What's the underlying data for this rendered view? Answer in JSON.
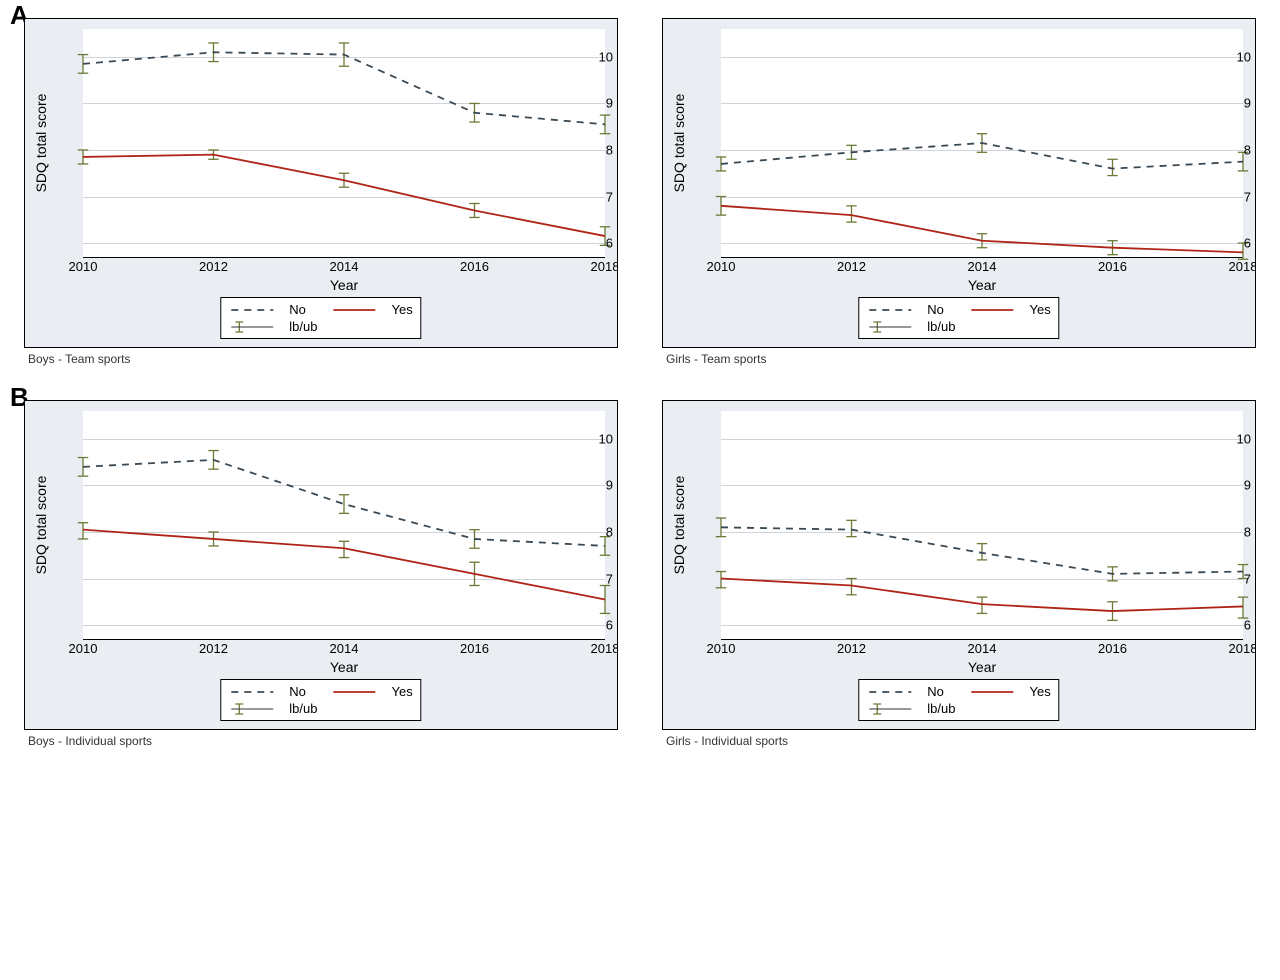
{
  "figure": {
    "background_color": "#ffffff",
    "panel_background": "#eaedf2",
    "plot_background": "#ffffff",
    "grid_color": "#cfd4db",
    "axis_color": "#000000",
    "ylabel": "SDQ total score",
    "xlabel": "Year",
    "x_ticks": [
      2010,
      2012,
      2014,
      2016,
      2018
    ],
    "y_ticks": [
      6,
      7,
      8,
      9,
      10
    ],
    "ylim": [
      5.7,
      10.6
    ],
    "xlim": [
      2010,
      2018
    ],
    "error_cap_halfwidth_years": 0.08,
    "error_line_width": 1.3,
    "label_fontsize": 14,
    "tick_fontsize": 13,
    "subtitle_fontsize": 12,
    "panel_letter_fontsize": 26,
    "series_style": {
      "no": {
        "color": "#3a4a55",
        "dash": "7,6",
        "width": 1.8
      },
      "yes": {
        "color": "#b02418",
        "dash": "",
        "width": 1.8
      },
      "err": {
        "color": "#6b7a36"
      }
    },
    "legend": {
      "no_label": "No",
      "yes_label": "Yes",
      "lbub_label": "lb/ub",
      "font_size": 13,
      "bg": "#ffffff",
      "border": "#000000"
    },
    "panels": [
      {
        "id": "boys-team",
        "letter": "A",
        "subtitle": "Boys - Team sports",
        "no": {
          "x": [
            2010,
            2012,
            2014,
            2016,
            2018
          ],
          "y": [
            9.85,
            10.1,
            10.05,
            8.8,
            8.55
          ],
          "lb": [
            9.65,
            9.9,
            9.8,
            8.6,
            8.35
          ],
          "ub": [
            10.05,
            10.3,
            10.3,
            9.0,
            8.75
          ]
        },
        "yes": {
          "x": [
            2010,
            2012,
            2014,
            2016,
            2018
          ],
          "y": [
            7.85,
            7.9,
            7.35,
            6.7,
            6.15
          ],
          "lb": [
            7.7,
            7.8,
            7.2,
            6.55,
            5.95
          ],
          "ub": [
            8.0,
            8.0,
            7.5,
            6.85,
            6.35
          ]
        }
      },
      {
        "id": "girls-team",
        "letter": "",
        "subtitle": "Girls - Team sports",
        "no": {
          "x": [
            2010,
            2012,
            2014,
            2016,
            2018
          ],
          "y": [
            7.7,
            7.95,
            8.15,
            7.6,
            7.75
          ],
          "lb": [
            7.55,
            7.8,
            7.95,
            7.45,
            7.55
          ],
          "ub": [
            7.85,
            8.1,
            8.35,
            7.8,
            7.95
          ]
        },
        "yes": {
          "x": [
            2010,
            2012,
            2014,
            2016,
            2018
          ],
          "y": [
            6.8,
            6.6,
            6.05,
            5.9,
            5.8
          ],
          "lb": [
            6.6,
            6.45,
            5.9,
            5.75,
            5.65
          ],
          "ub": [
            7.0,
            6.8,
            6.2,
            6.05,
            6.0
          ]
        }
      },
      {
        "id": "boys-individual",
        "letter": "B",
        "subtitle": "Boys - Individual sports",
        "no": {
          "x": [
            2010,
            2012,
            2014,
            2016,
            2018
          ],
          "y": [
            9.4,
            9.55,
            8.6,
            7.85,
            7.7
          ],
          "lb": [
            9.2,
            9.35,
            8.4,
            7.65,
            7.5
          ],
          "ub": [
            9.6,
            9.75,
            8.8,
            8.05,
            7.9
          ]
        },
        "yes": {
          "x": [
            2010,
            2012,
            2014,
            2016,
            2018
          ],
          "y": [
            8.05,
            7.85,
            7.65,
            7.1,
            6.55
          ],
          "lb": [
            7.85,
            7.7,
            7.45,
            6.85,
            6.25
          ],
          "ub": [
            8.2,
            8.0,
            7.8,
            7.35,
            6.85
          ]
        }
      },
      {
        "id": "girls-individual",
        "letter": "",
        "subtitle": "Girls - Individual sports",
        "no": {
          "x": [
            2010,
            2012,
            2014,
            2016,
            2018
          ],
          "y": [
            8.1,
            8.05,
            7.55,
            7.1,
            7.15
          ],
          "lb": [
            7.9,
            7.9,
            7.4,
            6.95,
            7.0
          ],
          "ub": [
            8.3,
            8.25,
            7.75,
            7.25,
            7.3
          ]
        },
        "yes": {
          "x": [
            2010,
            2012,
            2014,
            2016,
            2018
          ],
          "y": [
            7.0,
            6.85,
            6.45,
            6.3,
            6.4
          ],
          "lb": [
            6.8,
            6.65,
            6.25,
            6.1,
            6.15
          ],
          "ub": [
            7.15,
            7.0,
            6.6,
            6.5,
            6.6
          ]
        }
      }
    ]
  }
}
